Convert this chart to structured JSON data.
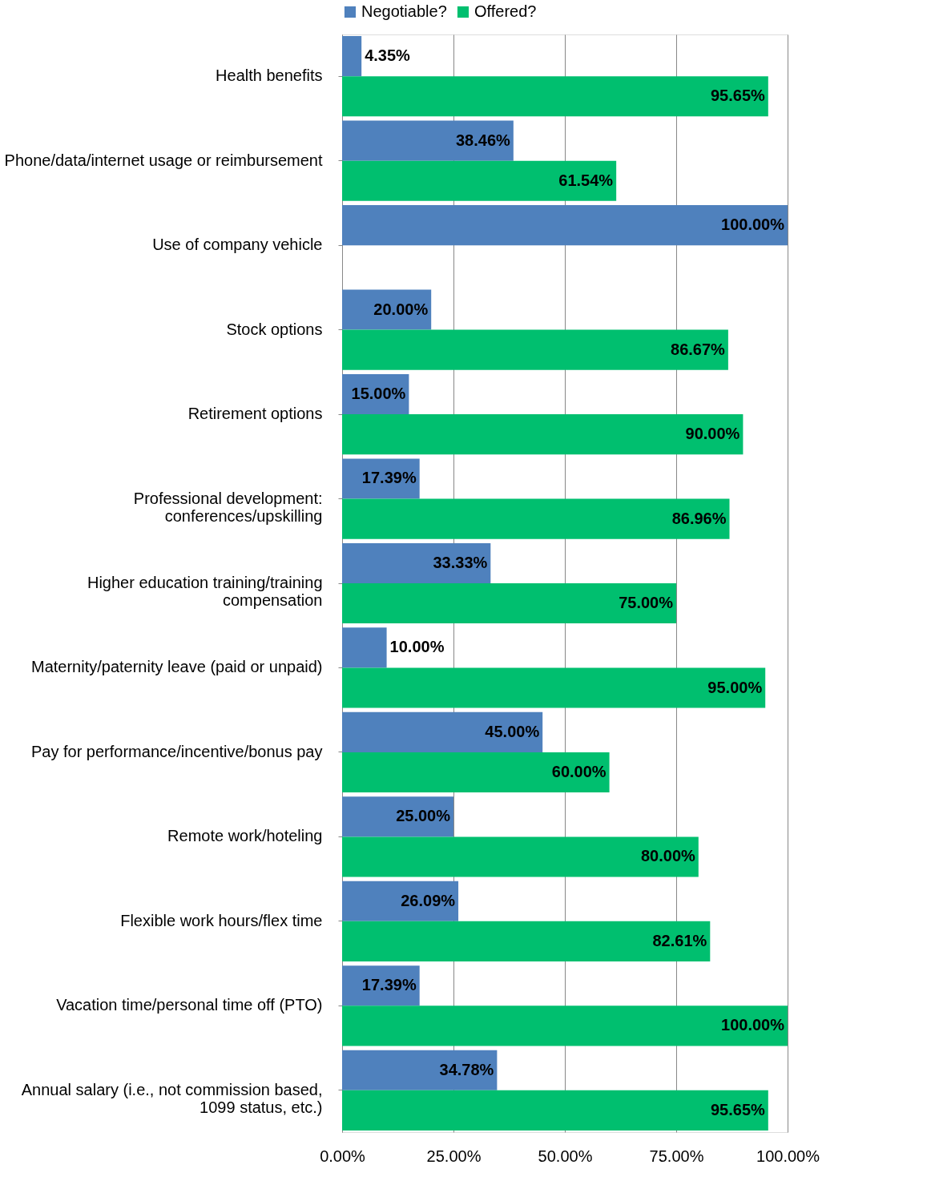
{
  "chart_data": {
    "type": "bar",
    "orientation": "horizontal",
    "categories": [
      "Health benefits",
      "Phone/data/internet usage or reimbursement",
      "Use of company vehicle",
      "Stock options",
      "Retirement options",
      "Professional development:\nconferences/upskilling",
      "Higher education training/training\ncompensation",
      "Maternity/paternity leave (paid or unpaid)",
      "Pay for performance/incentive/bonus pay",
      "Remote work/hoteling",
      "Flexible work hours/flex time",
      "Vacation time/personal time off (PTO)",
      "Annual salary (i.e., not commission based,\n1099 status, etc.)"
    ],
    "series": [
      {
        "name": "Negotiable?",
        "color": "#4f81bd",
        "values": [
          4.35,
          38.46,
          100.0,
          20.0,
          15.0,
          17.39,
          33.33,
          10.0,
          45.0,
          25.0,
          26.09,
          17.39,
          34.78
        ],
        "value_labels": [
          "4.35%",
          "38.46%",
          "100.00%",
          "20.00%",
          "15.00%",
          "17.39%",
          "33.33%",
          "10.00%",
          "45.00%",
          "25.00%",
          "26.09%",
          "17.39%",
          "34.78%"
        ]
      },
      {
        "name": "Offered?",
        "color": "#00bf6f",
        "values": [
          95.65,
          61.54,
          null,
          86.67,
          90.0,
          86.96,
          75.0,
          95.0,
          60.0,
          80.0,
          82.61,
          100.0,
          95.65
        ],
        "value_labels": [
          "95.65%",
          "61.54%",
          null,
          "86.67%",
          "90.00%",
          "86.96%",
          "75.00%",
          "95.00%",
          "60.00%",
          "80.00%",
          "82.61%",
          "100.00%",
          "95.65%"
        ]
      }
    ],
    "xlim": [
      0,
      100
    ],
    "xticks": [
      {
        "value": 0,
        "label": "0.00%"
      },
      {
        "value": 25,
        "label": "25.00%"
      },
      {
        "value": 50,
        "label": "50.00%"
      },
      {
        "value": 75,
        "label": "75.00%"
      },
      {
        "value": 100,
        "label": "100.00%"
      }
    ],
    "grid": "x",
    "legend": "top"
  }
}
